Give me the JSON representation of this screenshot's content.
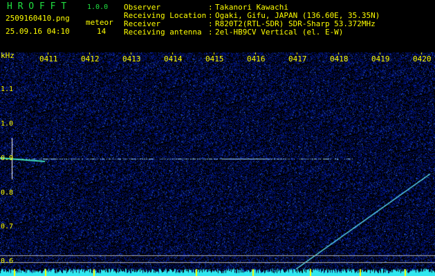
{
  "app": {
    "name": "H R O F F T",
    "version": "1.0.0"
  },
  "file": {
    "name": "2509160410.png",
    "datetime": "25.09.16 04:10"
  },
  "meteor": {
    "label": "meteor",
    "count": "14"
  },
  "info": [
    {
      "label": "Observer",
      "sep": ":",
      "value": "Takanori Kawachi"
    },
    {
      "label": "Receiving Location",
      "sep": ":",
      "value": "Ogaki, Gifu, JAPAN (136.60E, 35.35N)"
    },
    {
      "label": "Receiver",
      "sep": ":",
      "value": "R820T2(RTL-SDR) SDR-Sharp 53.372MHz"
    },
    {
      "label": "Receiving antenna",
      "sep": ":",
      "value": "2el-HB9CV Vertical (el. E-W)"
    }
  ],
  "axis": {
    "y_unit": "kHz",
    "y_ticks": [
      "1.1",
      "1.0",
      "0.9",
      "0.8",
      "0.7",
      "0.6"
    ],
    "x_ticks": [
      "0411",
      "0412",
      "0413",
      "0414",
      "0415",
      "0416",
      "0417",
      "0418",
      "0419",
      "0420"
    ]
  },
  "colors": {
    "text": "#ffff00",
    "logo": "#20e040",
    "background_noise": "#0a1a80",
    "signal": "#40e0ff"
  }
}
